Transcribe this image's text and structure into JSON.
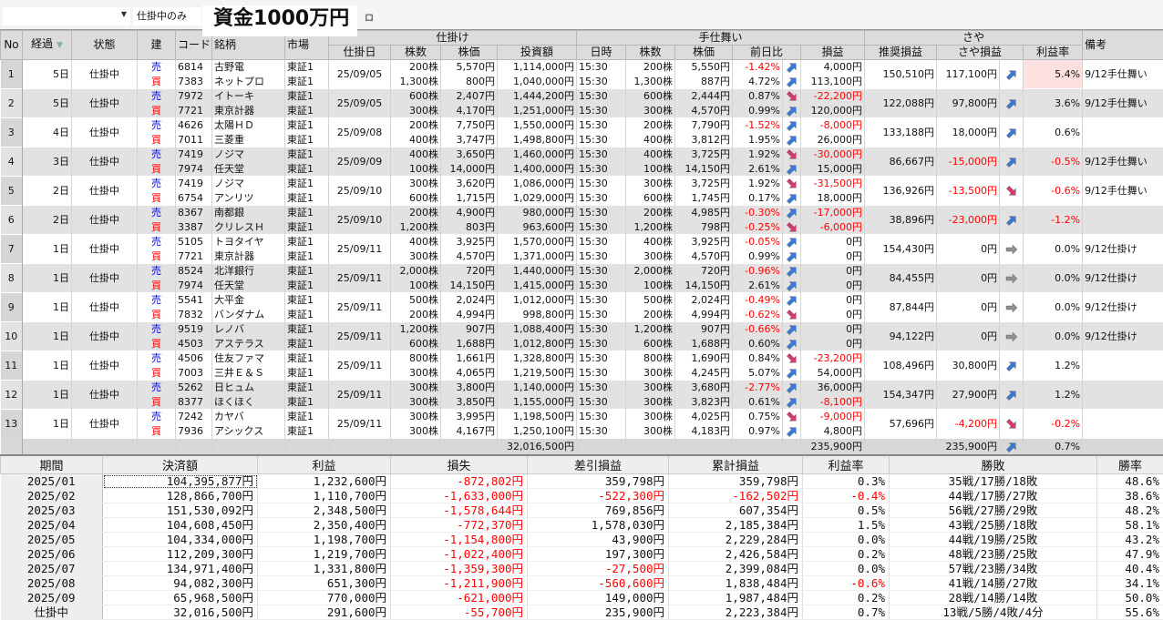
{
  "toolbar": {
    "dropdown_value": "",
    "filter_label": "仕掛中のみ",
    "title": "資金1000万円",
    "extra": "ロ"
  },
  "colors": {
    "sell": "#0000ff",
    "buy": "#ff0000",
    "negative": "#ff0000",
    "up_arrow": "#3a78d8",
    "down_arrow": "#d8386a",
    "flat_arrow": "#909090",
    "highlight": "#fde0e0"
  },
  "headers": {
    "no": "No",
    "elapsed": "経過",
    "status": "状態",
    "side": "建",
    "code": "コード",
    "name": "銘柄",
    "market": "市場",
    "entry_group": "仕掛け",
    "entry_date": "仕掛日",
    "qty": "株数",
    "price": "株価",
    "amount": "投資額",
    "exit_group": "手仕舞い",
    "time": "日時",
    "cur_qty": "株数",
    "cur_price": "株価",
    "change": "前日比",
    "pnl": "損益",
    "spread_group": "さや",
    "recommended": "推奨損益",
    "spread_pnl": "さや損益",
    "rate": "利益率",
    "note": "備考"
  },
  "positions": [
    {
      "no": "1",
      "elapsed": "5日",
      "status": "仕掛中",
      "date": "25/09/05",
      "recommended": "150,510円",
      "spread_pnl": "117,100円",
      "spread_trend": "up",
      "rate": "5.4%",
      "rate_highlight": true,
      "note": "9/12手仕舞い",
      "legs": [
        [
          "売",
          "6814",
          "古野電",
          "東証1",
          "200株",
          "5,570円",
          "1,114,000円",
          "15:30",
          "200株",
          "5,550円",
          "-1.42%",
          "up",
          "4,000円"
        ],
        [
          "買",
          "7383",
          "ネットプロ",
          "東証1",
          "1,300株",
          "800円",
          "1,040,000円",
          "15:30",
          "1,300株",
          "887円",
          "4.72%",
          "up",
          "113,100円"
        ]
      ]
    },
    {
      "no": "2",
      "elapsed": "5日",
      "status": "仕掛中",
      "date": "25/09/05",
      "recommended": "122,088円",
      "spread_pnl": "97,800円",
      "spread_trend": "up",
      "rate": "3.6%",
      "note": "9/12手仕舞い",
      "legs": [
        [
          "売",
          "7972",
          "イトーキ",
          "東証1",
          "600株",
          "2,407円",
          "1,444,200円",
          "15:30",
          "600株",
          "2,444円",
          "0.87%",
          "down",
          "-22,200円"
        ],
        [
          "買",
          "7721",
          "東京計器",
          "東証1",
          "300株",
          "4,170円",
          "1,251,000円",
          "15:30",
          "300株",
          "4,570円",
          "0.99%",
          "up",
          "120,000円"
        ]
      ]
    },
    {
      "no": "3",
      "elapsed": "4日",
      "status": "仕掛中",
      "date": "25/09/08",
      "recommended": "133,188円",
      "spread_pnl": "18,000円",
      "spread_trend": "up",
      "rate": "0.6%",
      "note": "",
      "legs": [
        [
          "売",
          "4626",
          "太陽ＨＤ",
          "東証1",
          "200株",
          "7,750円",
          "1,550,000円",
          "15:30",
          "200株",
          "7,790円",
          "-1.52%",
          "up",
          "-8,000円"
        ],
        [
          "買",
          "7011",
          "三菱重",
          "東証1",
          "400株",
          "3,747円",
          "1,498,800円",
          "15:30",
          "400株",
          "3,812円",
          "1.95%",
          "up",
          "26,000円"
        ]
      ]
    },
    {
      "no": "4",
      "elapsed": "3日",
      "status": "仕掛中",
      "date": "25/09/09",
      "recommended": "86,667円",
      "spread_pnl": "-15,000円",
      "spread_trend": "up",
      "rate": "-0.5%",
      "note": "9/12手仕舞い",
      "legs": [
        [
          "売",
          "7419",
          "ノジマ",
          "東証1",
          "400株",
          "3,650円",
          "1,460,000円",
          "15:30",
          "400株",
          "3,725円",
          "1.92%",
          "down",
          "-30,000円"
        ],
        [
          "買",
          "7974",
          "任天堂",
          "東証1",
          "100株",
          "14,000円",
          "1,400,000円",
          "15:30",
          "100株",
          "14,150円",
          "2.61%",
          "up",
          "15,000円"
        ]
      ]
    },
    {
      "no": "5",
      "elapsed": "2日",
      "status": "仕掛中",
      "date": "25/09/10",
      "recommended": "136,926円",
      "spread_pnl": "-13,500円",
      "spread_trend": "down",
      "rate": "-0.6%",
      "note": "9/12手仕舞い",
      "legs": [
        [
          "売",
          "7419",
          "ノジマ",
          "東証1",
          "300株",
          "3,620円",
          "1,086,000円",
          "15:30",
          "300株",
          "3,725円",
          "1.92%",
          "down",
          "-31,500円"
        ],
        [
          "買",
          "6754",
          "アンリツ",
          "東証1",
          "600株",
          "1,715円",
          "1,029,000円",
          "15:30",
          "600株",
          "1,745円",
          "0.17%",
          "up",
          "18,000円"
        ]
      ]
    },
    {
      "no": "6",
      "elapsed": "2日",
      "status": "仕掛中",
      "date": "25/09/10",
      "recommended": "38,896円",
      "spread_pnl": "-23,000円",
      "spread_trend": "up",
      "rate": "-1.2%",
      "note": "",
      "legs": [
        [
          "売",
          "8367",
          "南都銀",
          "東証1",
          "200株",
          "4,900円",
          "980,000円",
          "15:30",
          "200株",
          "4,985円",
          "-0.30%",
          "up",
          "-17,000円"
        ],
        [
          "買",
          "3387",
          "クリレスＨ",
          "東証1",
          "1,200株",
          "803円",
          "963,600円",
          "15:30",
          "1,200株",
          "798円",
          "-0.25%",
          "down",
          "-6,000円"
        ]
      ]
    },
    {
      "no": "7",
      "elapsed": "1日",
      "status": "仕掛中",
      "date": "25/09/11",
      "recommended": "154,430円",
      "spread_pnl": "0円",
      "spread_trend": "flat",
      "rate": "0.0%",
      "note": "9/12仕掛け",
      "legs": [
        [
          "売",
          "5105",
          "トヨタイヤ",
          "東証1",
          "400株",
          "3,925円",
          "1,570,000円",
          "15:30",
          "400株",
          "3,925円",
          "-0.05%",
          "up",
          "0円"
        ],
        [
          "買",
          "7721",
          "東京計器",
          "東証1",
          "300株",
          "4,570円",
          "1,371,000円",
          "15:30",
          "300株",
          "4,570円",
          "0.99%",
          "up",
          "0円"
        ]
      ]
    },
    {
      "no": "8",
      "elapsed": "1日",
      "status": "仕掛中",
      "date": "25/09/11",
      "recommended": "84,455円",
      "spread_pnl": "0円",
      "spread_trend": "flat",
      "rate": "0.0%",
      "note": "9/12仕掛け",
      "legs": [
        [
          "売",
          "8524",
          "北洋銀行",
          "東証1",
          "2,000株",
          "720円",
          "1,440,000円",
          "15:30",
          "2,000株",
          "720円",
          "-0.96%",
          "up",
          "0円"
        ],
        [
          "買",
          "7974",
          "任天堂",
          "東証1",
          "100株",
          "14,150円",
          "1,415,000円",
          "15:30",
          "100株",
          "14,150円",
          "2.61%",
          "up",
          "0円"
        ]
      ]
    },
    {
      "no": "9",
      "elapsed": "1日",
      "status": "仕掛中",
      "date": "25/09/11",
      "recommended": "87,844円",
      "spread_pnl": "0円",
      "spread_trend": "flat",
      "rate": "0.0%",
      "note": "9/12仕掛け",
      "legs": [
        [
          "売",
          "5541",
          "大平金",
          "東証1",
          "500株",
          "2,024円",
          "1,012,000円",
          "15:30",
          "500株",
          "2,024円",
          "-0.49%",
          "up",
          "0円"
        ],
        [
          "買",
          "7832",
          "バンダナム",
          "東証1",
          "200株",
          "4,994円",
          "998,800円",
          "15:30",
          "200株",
          "4,994円",
          "-0.62%",
          "down",
          "0円"
        ]
      ]
    },
    {
      "no": "10",
      "elapsed": "1日",
      "status": "仕掛中",
      "date": "25/09/11",
      "recommended": "94,122円",
      "spread_pnl": "0円",
      "spread_trend": "flat",
      "rate": "0.0%",
      "note": "9/12仕掛け",
      "legs": [
        [
          "売",
          "9519",
          "レノバ",
          "東証1",
          "1,200株",
          "907円",
          "1,088,400円",
          "15:30",
          "1,200株",
          "907円",
          "-0.66%",
          "up",
          "0円"
        ],
        [
          "買",
          "4503",
          "アステラス",
          "東証1",
          "600株",
          "1,688円",
          "1,012,800円",
          "15:30",
          "600株",
          "1,688円",
          "0.60%",
          "up",
          "0円"
        ]
      ]
    },
    {
      "no": "11",
      "elapsed": "1日",
      "status": "仕掛中",
      "date": "25/09/11",
      "recommended": "108,496円",
      "spread_pnl": "30,800円",
      "spread_trend": "up",
      "rate": "1.2%",
      "note": "",
      "legs": [
        [
          "売",
          "4506",
          "住友ファマ",
          "東証1",
          "800株",
          "1,661円",
          "1,328,800円",
          "15:30",
          "800株",
          "1,690円",
          "0.84%",
          "down",
          "-23,200円"
        ],
        [
          "買",
          "7003",
          "三井Ｅ＆Ｓ",
          "東証1",
          "300株",
          "4,065円",
          "1,219,500円",
          "15:30",
          "300株",
          "4,245円",
          "5.07%",
          "up",
          "54,000円"
        ]
      ]
    },
    {
      "no": "12",
      "elapsed": "1日",
      "status": "仕掛中",
      "date": "25/09/11",
      "recommended": "154,347円",
      "spread_pnl": "27,900円",
      "spread_trend": "up",
      "rate": "1.2%",
      "note": "",
      "legs": [
        [
          "売",
          "5262",
          "日ヒュム",
          "東証1",
          "300株",
          "3,800円",
          "1,140,000円",
          "15:30",
          "300株",
          "3,680円",
          "-2.77%",
          "up",
          "36,000円"
        ],
        [
          "買",
          "8377",
          "ほくほく",
          "東証1",
          "300株",
          "3,850円",
          "1,155,000円",
          "15:30",
          "300株",
          "3,823円",
          "0.61%",
          "up",
          "-8,100円"
        ]
      ]
    },
    {
      "no": "13",
      "elapsed": "1日",
      "status": "仕掛中",
      "date": "25/09/11",
      "recommended": "57,696円",
      "spread_pnl": "-4,200円",
      "spread_trend": "down",
      "rate": "-0.2%",
      "note": "",
      "legs": [
        [
          "売",
          "7242",
          "カヤバ",
          "東証1",
          "300株",
          "3,995円",
          "1,198,500円",
          "15:30",
          "300株",
          "4,025円",
          "0.75%",
          "down",
          "-9,000円"
        ],
        [
          "買",
          "7936",
          "アシックス",
          "東証1",
          "300株",
          "4,167円",
          "1,250,100円",
          "15:30",
          "300株",
          "4,183円",
          "0.97%",
          "up",
          "4,800円"
        ]
      ]
    }
  ],
  "totals": {
    "amount": "32,016,500円",
    "pnl": "235,900円",
    "spread_pnl": "235,900円",
    "spread_trend": "up",
    "rate": "0.7%"
  },
  "summary": {
    "headers": [
      "期間",
      "決済額",
      "利益",
      "損失",
      "差引損益",
      "累計損益",
      "利益率",
      "勝敗",
      "勝率"
    ],
    "rows": [
      [
        "2025/01",
        "104,395,877円",
        "1,232,600円",
        "-872,802円",
        "359,798円",
        "359,798円",
        "0.3%",
        "35戦/17勝/18敗",
        "48.6%"
      ],
      [
        "2025/02",
        "128,866,700円",
        "1,110,700円",
        "-1,633,000円",
        "-522,300円",
        "-162,502円",
        "-0.4%",
        "44戦/17勝/27敗",
        "38.6%"
      ],
      [
        "2025/03",
        "151,530,092円",
        "2,348,500円",
        "-1,578,644円",
        "769,856円",
        "607,354円",
        "0.5%",
        "56戦/27勝/29敗",
        "48.2%"
      ],
      [
        "2025/04",
        "104,608,450円",
        "2,350,400円",
        "-772,370円",
        "1,578,030円",
        "2,185,384円",
        "1.5%",
        "43戦/25勝/18敗",
        "58.1%"
      ],
      [
        "2025/05",
        "104,334,000円",
        "1,198,700円",
        "-1,154,800円",
        "43,900円",
        "2,229,284円",
        "0.0%",
        "44戦/19勝/25敗",
        "43.2%"
      ],
      [
        "2025/06",
        "112,209,300円",
        "1,219,700円",
        "-1,022,400円",
        "197,300円",
        "2,426,584円",
        "0.2%",
        "48戦/23勝/25敗",
        "47.9%"
      ],
      [
        "2025/07",
        "134,971,400円",
        "1,331,800円",
        "-1,359,300円",
        "-27,500円",
        "2,399,084円",
        "0.0%",
        "57戦/23勝/34敗",
        "40.4%"
      ],
      [
        "2025/08",
        "94,082,300円",
        "651,300円",
        "-1,211,900円",
        "-560,600円",
        "1,838,484円",
        "-0.6%",
        "41戦/14勝/27敗",
        "34.1%"
      ],
      [
        "2025/09",
        "65,968,500円",
        "770,000円",
        "-621,000円",
        "149,000円",
        "1,987,484円",
        "0.2%",
        "28戦/14勝/14敗",
        "50.0%"
      ],
      [
        "仕掛中",
        "32,016,500円",
        "291,600円",
        "-55,700円",
        "235,900円",
        "2,223,384円",
        "0.7%",
        "13戦/5勝/4敗/4分",
        "55.6%"
      ]
    ]
  }
}
